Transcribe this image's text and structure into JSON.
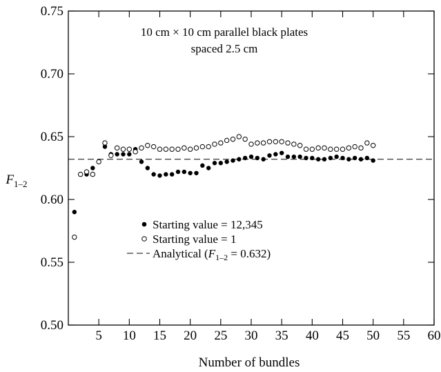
{
  "chart_data": {
    "type": "scatter",
    "xlabel": "Number of bundles",
    "ylabel_main": "F",
    "ylabel_sub": "1–2",
    "xlim": [
      0,
      60
    ],
    "ylim": [
      0.5,
      0.75
    ],
    "x_ticks": [
      5,
      10,
      15,
      20,
      25,
      30,
      35,
      40,
      45,
      50,
      55,
      60
    ],
    "x_tick_labels": [
      "5",
      "10",
      "15",
      "20",
      "25",
      "30",
      "35",
      "40",
      "45",
      "50",
      "55",
      "60"
    ],
    "y_ticks": [
      0.5,
      0.55,
      0.6,
      0.65,
      0.7,
      0.75
    ],
    "y_tick_labels": [
      "0.50",
      "0.55",
      "0.60",
      "0.65",
      "0.70",
      "0.75"
    ],
    "grid": false,
    "annotation": [
      "10 cm × 10 cm parallel black plates",
      "spaced 2.5 cm"
    ],
    "legend_position": "lower-middle",
    "series": [
      {
        "name": "Starting value = 12,345",
        "marker": "filled-circle",
        "color": "#000000",
        "x": [
          1,
          2,
          3,
          4,
          5,
          6,
          7,
          8,
          9,
          10,
          11,
          12,
          13,
          14,
          15,
          16,
          17,
          18,
          19,
          20,
          21,
          22,
          23,
          24,
          25,
          26,
          27,
          28,
          29,
          30,
          31,
          32,
          33,
          34,
          35,
          36,
          37,
          38,
          39,
          40,
          41,
          42,
          43,
          44,
          45,
          46,
          47,
          48,
          49,
          50
        ],
        "y": [
          0.59,
          0.62,
          0.62,
          0.625,
          0.63,
          0.642,
          0.636,
          0.636,
          0.636,
          0.636,
          0.64,
          0.63,
          0.625,
          0.62,
          0.619,
          0.62,
          0.62,
          0.622,
          0.622,
          0.621,
          0.621,
          0.627,
          0.625,
          0.629,
          0.629,
          0.63,
          0.631,
          0.632,
          0.633,
          0.634,
          0.633,
          0.632,
          0.635,
          0.636,
          0.637,
          0.634,
          0.634,
          0.634,
          0.633,
          0.633,
          0.632,
          0.632,
          0.633,
          0.634,
          0.633,
          0.632,
          0.633,
          0.632,
          0.633,
          0.631
        ]
      },
      {
        "name": "Starting value = 1",
        "marker": "open-circle",
        "color": "#000000",
        "x": [
          1,
          2,
          3,
          4,
          5,
          6,
          7,
          8,
          9,
          10,
          11,
          12,
          13,
          14,
          15,
          16,
          17,
          18,
          19,
          20,
          21,
          22,
          23,
          24,
          25,
          26,
          27,
          28,
          29,
          30,
          31,
          32,
          33,
          34,
          35,
          36,
          37,
          38,
          39,
          40,
          41,
          42,
          43,
          44,
          45,
          46,
          47,
          48,
          49,
          50
        ],
        "y": [
          0.57,
          0.62,
          0.622,
          0.62,
          0.63,
          0.645,
          0.635,
          0.641,
          0.64,
          0.64,
          0.638,
          0.641,
          0.643,
          0.642,
          0.64,
          0.64,
          0.64,
          0.64,
          0.641,
          0.64,
          0.641,
          0.642,
          0.642,
          0.644,
          0.645,
          0.647,
          0.648,
          0.65,
          0.648,
          0.644,
          0.645,
          0.645,
          0.646,
          0.646,
          0.646,
          0.645,
          0.644,
          0.643,
          0.64,
          0.64,
          0.641,
          0.641,
          0.64,
          0.64,
          0.64,
          0.641,
          0.642,
          0.641,
          0.645,
          0.643
        ]
      }
    ],
    "reference_line": {
      "name": "Analytical",
      "legend_prefix": "Analytical (",
      "legend_var": "F",
      "legend_sub": "1–2",
      "legend_suffix": " = 0.632)",
      "y": 0.632,
      "style": "dashed"
    }
  }
}
